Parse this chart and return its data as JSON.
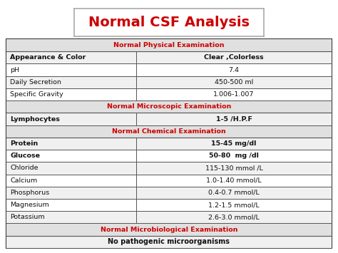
{
  "title": "Normal CSF Analysis",
  "title_color": "#cc0000",
  "title_fontsize": 14,
  "title_box_color": "#ffffff",
  "title_box_edge": "#aaaaaa",
  "bg_color": "#ffffff",
  "table_bg": "#ffffff",
  "header_bg": "#e0e0e0",
  "header_text_color": "#cc0000",
  "row_bg_odd": "#f0f0f0",
  "row_bg_even": "#ffffff",
  "border_color": "#555555",
  "text_color": "#111111",
  "col_split": 0.4,
  "sections": [
    {
      "section_title": "Normal Physical Examination",
      "rows": [
        [
          "Appearance & Color",
          "Clear ,Colorless",
          true
        ],
        [
          "pH",
          "7.4",
          false
        ],
        [
          "Daily Secretion",
          "450-500 ml",
          false
        ],
        [
          "Specific Gravity",
          "1.006-1.007",
          false
        ]
      ]
    },
    {
      "section_title": "Normal Microscopic Examination",
      "rows": [
        [
          "Lymphocytes",
          "1-5 /H.P.F",
          true
        ]
      ]
    },
    {
      "section_title": "Normal Chemical Examination",
      "rows": [
        [
          "Protein",
          "15-45 mg/dl",
          true
        ],
        [
          "Glucose",
          "50-80  mg /dl",
          true
        ],
        [
          "Chloride",
          "115-130 mmol /L",
          false
        ],
        [
          "Calcium",
          "1.0-1.40 mmol/L",
          false
        ],
        [
          "Phosphorus",
          "0.4-0.7 mmol/L",
          false
        ],
        [
          "Magnesium",
          "1.2-1.5 mmol/L",
          false
        ],
        [
          "Potassium",
          "2.6-3.0 mmol/L",
          false
        ]
      ]
    },
    {
      "section_title": "Normal Microbiological Examination",
      "rows": [
        [
          "No pathogenic microorganisms",
          "",
          false
        ]
      ]
    }
  ]
}
